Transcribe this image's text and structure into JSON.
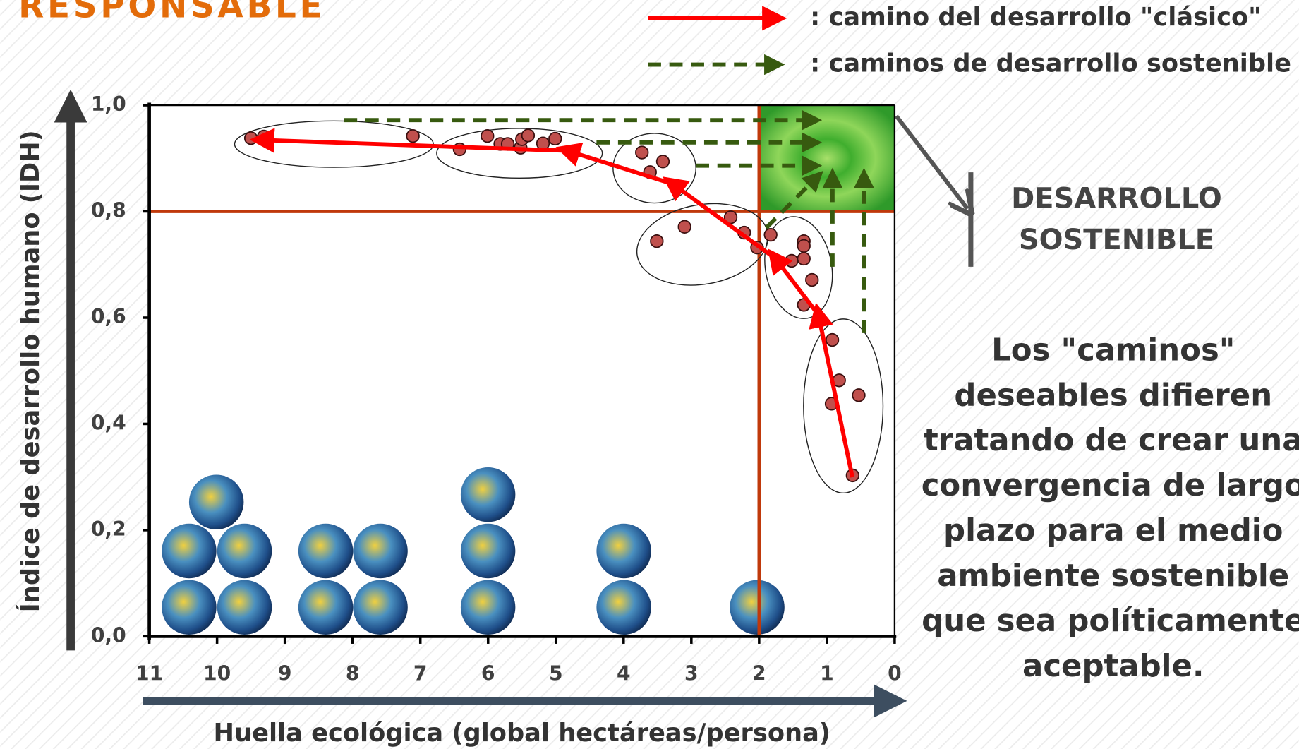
{
  "chart_data": {
    "type": "scatter",
    "title": "RESPONSABLE",
    "x_label": "Huella ecológica (global hectáreas/persona)",
    "y_label": "Índice de desarrollo humano (IDH)",
    "xlim": [
      11,
      0
    ],
    "ylim": [
      0,
      1.0
    ],
    "xticks": [
      11,
      10,
      9,
      8,
      7,
      6,
      5,
      4,
      3,
      2,
      1,
      0
    ],
    "yticks": [
      {
        "value": 0,
        "label": "0,0"
      },
      {
        "value": 0.2,
        "label": "0,2"
      },
      {
        "value": 0.4,
        "label": "0,4"
      },
      {
        "value": 0.6,
        "label": "0,6"
      },
      {
        "value": 0.8,
        "label": "0,8"
      },
      {
        "value": 1.0,
        "label": "1,0"
      }
    ],
    "x": [
      9.5,
      9.31,
      7.11,
      6.42,
      6.01,
      5.82,
      5.71,
      5.52,
      5.5,
      5.41,
      5.19,
      5.01,
      3.73,
      3.61,
      3.42,
      3.51,
      3.1,
      2.42,
      2.22,
      2.03,
      1.83,
      1.52,
      1.34,
      1.34,
      1.34,
      1.22,
      1.34,
      0.92,
      0.82,
      0.93,
      0.53,
      0.62
    ],
    "y": [
      0.938,
      0.941,
      0.942,
      0.917,
      0.942,
      0.927,
      0.927,
      0.92,
      0.936,
      0.943,
      0.928,
      0.937,
      0.911,
      0.874,
      0.894,
      0.744,
      0.771,
      0.789,
      0.76,
      0.732,
      0.756,
      0.707,
      0.744,
      0.735,
      0.711,
      0.671,
      0.624,
      0.558,
      0.482,
      0.438,
      0.454,
      0.303
    ],
    "color": "#c0504d",
    "reference_lines": {
      "x": 2,
      "y": 0.8,
      "color": "#c0390b"
    },
    "legend": [
      {
        "label": ": camino del desarrollo \"clásico\"",
        "color": "#ff0000"
      },
      {
        "label": ": caminos de desarrollo sostenible",
        "color": "#375a0f"
      }
    ],
    "zone_label": [
      "DESARROLLO",
      "SOSTENIBLE"
    ],
    "note_lines": [
      "Los \"caminos\"",
      "deseables difieren",
      "tratando de crear una",
      "convergencia de largo",
      "plazo para el medio",
      "ambiente sostenible",
      "que sea políticamente",
      "aceptable."
    ]
  }
}
